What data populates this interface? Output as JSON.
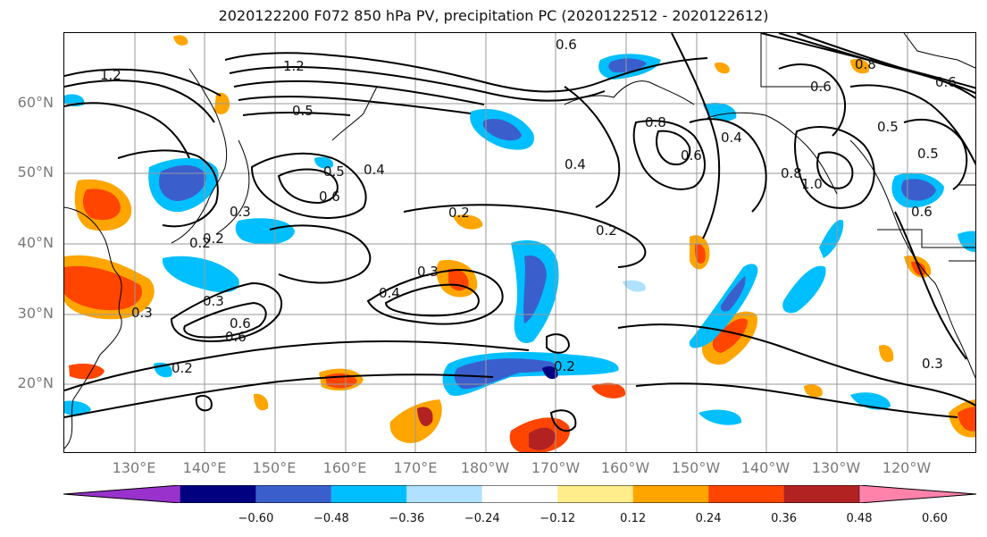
{
  "title": "2020122200 F072 850 hPa PV, precipitation PC (2020122512 - 2020122612)",
  "latitude_labels": [
    "60°N",
    "50°N",
    "40°N",
    "30°N",
    "20°N"
  ],
  "longitude_labels": [
    "130°E",
    "140°E",
    "150°E",
    "160°E",
    "170°E",
    "180°W",
    "170°W",
    "160°W",
    "150°W",
    "140°W",
    "130°W",
    "120°W"
  ],
  "contour_labels": [
    "1.2",
    "1.2",
    "0.5",
    "0.5",
    "0.6",
    "0.3",
    "0.2",
    "0.2",
    "0.3",
    "0.4",
    "0.6",
    "0.3",
    "0.2",
    "0.2",
    "0.6",
    "0.4",
    "0.4",
    "0.2",
    "0.6",
    "0.6",
    "0.5",
    "1.0",
    "0.8",
    "0.5",
    "0.8",
    "0.6",
    "0.2",
    "0.3",
    "0.3",
    "0.4",
    "0.6",
    "0.8",
    "0.6"
  ],
  "colorbar": {
    "ticks": [
      "−0.60",
      "−0.48",
      "−0.36",
      "−0.24",
      "−0.12",
      "0.12",
      "0.24",
      "0.36",
      "0.48",
      "0.60"
    ],
    "colors": [
      "#9932cc",
      "#000080",
      "#3a5fcd",
      "#00bfff",
      "#b0e2ff",
      "#ffffff",
      "#ffec8b",
      "#ffa500",
      "#ff4500",
      "#b22222",
      "#ff82ab"
    ],
    "extend": "both"
  },
  "colors": {
    "frame": "#000000",
    "contour": "#000000",
    "grid": "#9a9a9a",
    "coast": "#000000",
    "axis_label": "#7a7a7a"
  }
}
